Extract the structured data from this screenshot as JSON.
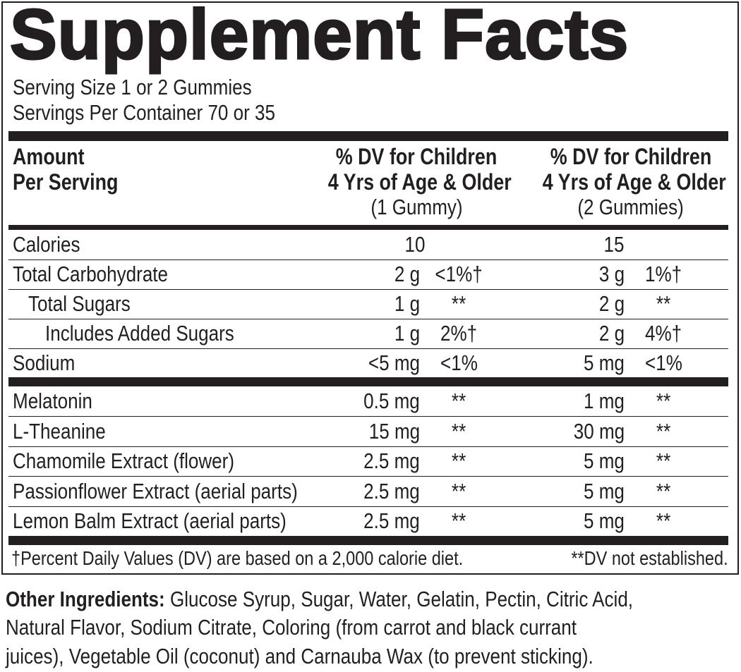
{
  "title": "Supplement Facts",
  "serving_size": "Serving Size 1 or 2 Gummies",
  "servings_per_container": "Servings Per Container 70 or 35",
  "header": {
    "col0": [
      "Amount",
      "Per Serving"
    ],
    "col1": [
      "% DV for Children",
      "4 Yrs of Age & Older",
      "(1 Gummy)"
    ],
    "col2": [
      "% DV for Children",
      "4 Yrs of Age & Older",
      "(2 Gummies)"
    ]
  },
  "rows": [
    {
      "name": "Calories",
      "amt1": "10",
      "dv1": "",
      "amt2": "15",
      "dv2": ""
    },
    {
      "name": "Total Carbohydrate",
      "amt1": "2 g",
      "dv1": "<1%†",
      "amt2": "3 g",
      "dv2": "1%†"
    },
    {
      "name": "Total Sugars",
      "amt1": "1 g",
      "dv1": "**",
      "amt2": "2 g",
      "dv2": "**"
    },
    {
      "name": "Includes Added Sugars",
      "amt1": "1 g",
      "dv1": "2%†",
      "amt2": "2 g",
      "dv2": "4%†"
    },
    {
      "name": "Sodium",
      "amt1": "<5 mg",
      "dv1": "<1%",
      "amt2": "5 mg",
      "dv2": "<1%"
    },
    {
      "name": "Melatonin",
      "amt1": "0.5 mg",
      "dv1": "**",
      "amt2": "1 mg",
      "dv2": "**"
    },
    {
      "name": "L-Theanine",
      "amt1": "15 mg",
      "dv1": "**",
      "amt2": "30 mg",
      "dv2": "**"
    },
    {
      "name": "Chamomile Extract (flower)",
      "amt1": "2.5 mg",
      "dv1": "**",
      "amt2": "5 mg",
      "dv2": "**"
    },
    {
      "name": "Passionflower Extract (aerial parts)",
      "amt1": "2.5 mg",
      "dv1": "**",
      "amt2": "5 mg",
      "dv2": "**"
    },
    {
      "name": "Lemon Balm Extract (aerial parts)",
      "amt1": "2.5 mg",
      "dv1": "**",
      "amt2": "5 mg",
      "dv2": "**"
    }
  ],
  "footnote_dv": "†Percent Daily Values (DV) are based on a 2,000 calorie diet.",
  "footnote_ne": "**DV not established.",
  "other_ingredients": {
    "label": "Other Ingredients:",
    "lines": [
      " Glucose Syrup, Sugar, Water, Gelatin, Pectin, Citric Acid,",
      "Natural Flavor, Sodium Citrate, Coloring (from carrot and black currant",
      "juices), Vegetable Oil (coconut) and Carnauba Wax (to prevent sticking)."
    ]
  }
}
